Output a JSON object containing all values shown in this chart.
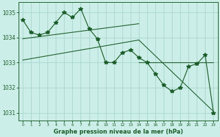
{
  "xlabel": "Graphe pression niveau de la mer (hPa)",
  "bg_color": "#cceee8",
  "grid_color": "#aad8d0",
  "line_color": "#1a5c28",
  "x_values": [
    0,
    1,
    2,
    3,
    4,
    5,
    6,
    7,
    8,
    9,
    10,
    11,
    12,
    13,
    14,
    15,
    16,
    17,
    18,
    19,
    20,
    21,
    22,
    23
  ],
  "y_values": [
    1034.7,
    1034.2,
    1034.1,
    1034.2,
    1034.6,
    1035.0,
    1034.8,
    1035.15,
    1034.35,
    1033.95,
    1033.0,
    1033.0,
    1033.4,
    1033.5,
    1033.2,
    1033.0,
    1032.55,
    1032.1,
    1031.85,
    1032.0,
    1032.85,
    1032.95,
    1033.3,
    1031.0
  ],
  "ylim": [
    1030.7,
    1035.4
  ],
  "yticks": [
    1031,
    1032,
    1033,
    1034,
    1035
  ],
  "xticks": [
    0,
    1,
    2,
    3,
    4,
    5,
    6,
    7,
    8,
    9,
    10,
    11,
    12,
    13,
    14,
    15,
    16,
    17,
    18,
    19,
    20,
    21,
    22,
    23
  ],
  "trend_lines": [
    {
      "x0": 0,
      "y0": 1033.1,
      "x1": 14,
      "y1": 1033.9
    },
    {
      "x0": 0,
      "y0": 1033.95,
      "x1": 14,
      "y1": 1034.55
    },
    {
      "x0": 14,
      "y0": 1033.0,
      "x1": 23,
      "y1": 1033.0
    },
    {
      "x0": 14,
      "y0": 1033.9,
      "x1": 23,
      "y1": 1031.05
    }
  ]
}
